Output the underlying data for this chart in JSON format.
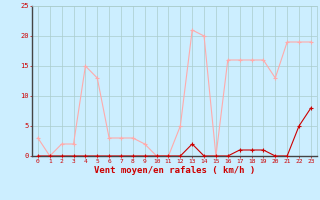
{
  "hours": [
    0,
    1,
    2,
    3,
    4,
    5,
    6,
    7,
    8,
    9,
    10,
    11,
    12,
    13,
    14,
    15,
    16,
    17,
    18,
    19,
    20,
    21,
    22,
    23
  ],
  "wind_avg": [
    0,
    0,
    0,
    0,
    0,
    0,
    0,
    0,
    0,
    0,
    0,
    0,
    0,
    2,
    0,
    0,
    0,
    1,
    1,
    1,
    0,
    0,
    5,
    8
  ],
  "wind_gust": [
    3,
    0,
    2,
    2,
    15,
    13,
    3,
    3,
    3,
    2,
    0,
    0,
    5,
    21,
    20,
    0,
    16,
    16,
    16,
    16,
    13,
    19,
    19,
    19
  ],
  "color_avg": "#cc0000",
  "color_gust": "#ffaaaa",
  "bg_color": "#cceeff",
  "grid_color": "#aacccc",
  "xlabel": "Vent moyen/en rafales ( km/h )",
  "xlabel_color": "#cc0000",
  "tick_color": "#cc0000",
  "spine_color": "#888888",
  "ylim": [
    0,
    25
  ],
  "yticks": [
    0,
    5,
    10,
    15,
    20,
    25
  ],
  "label_fontsize": 6.5
}
